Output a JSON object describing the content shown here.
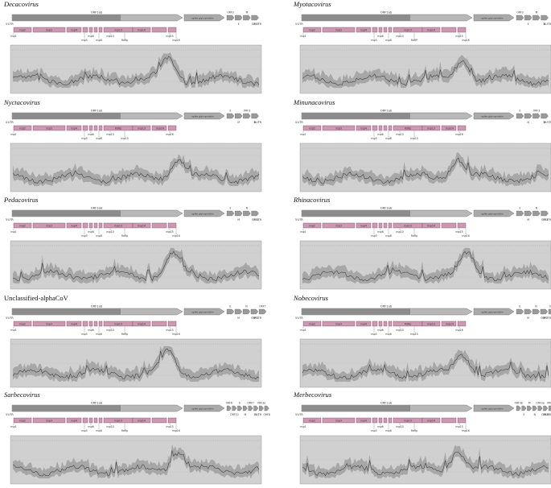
{
  "colors": {
    "orf_dark": "#8c8c8c",
    "orf_light": "#b8b8b8",
    "spike": "#aaaaaa",
    "nsp_fill": "#cc99b3",
    "nsp_stroke": "#7a4a63",
    "plot_bg": "#d0d0d0",
    "line": "#3a3a3a",
    "band": "#9a9a9a"
  },
  "panels": [
    {
      "title": "Decacovirus",
      "italic": true,
      "orf_label": "ORF1ab",
      "spike_label": "spike glycoprotein",
      "utr5": "5'UTR",
      "utr3": "3'UTR",
      "accessory": [
        "ORF3",
        "E",
        "M",
        "ORF7"
      ],
      "nsps_in_bar": [
        "nsp2",
        "nsp3",
        "nsp4",
        "nsp13",
        "nsp14"
      ],
      "nsp_below": [
        "nsp1",
        "nsp5",
        "nsp6",
        "nsp8",
        "nsp10",
        "RdRp",
        "nsp15",
        "nsp16"
      ]
    },
    {
      "title": "Myotacovirus",
      "italic": true,
      "orf_label": "ORF1ab",
      "spike_label": "spike glycoprotein",
      "utr5": "5'UTR",
      "utr3": "3'UTR",
      "accessory": [
        "ORF3",
        "E",
        "M",
        "N"
      ],
      "nsps_in_bar": [
        "nsp2",
        "nsp3",
        "nsp4",
        "nsp13",
        "nsp14"
      ],
      "nsp_below": [
        "nsp1",
        "nsp5",
        "nsp6",
        "nsp8",
        "nsp10",
        "RdRP",
        "nsp15",
        "nsp16"
      ]
    },
    {
      "title": "Nyctacovirus",
      "italic": true,
      "orf_label": "ORF1ab",
      "spike_label": "spike glycoprotein",
      "utr5": "5'UTR",
      "utr3": "3'UTR",
      "accessory": [
        "E",
        "M",
        "ORF3",
        "N"
      ],
      "nsps_in_bar": [
        "nsp2",
        "nsp3",
        "nsp4",
        "RdRp",
        "nsp13",
        "nsp14"
      ],
      "nsp_below": [
        "nsp1",
        "nsp5",
        "nsp6",
        "nsp8",
        "nsp10",
        "nsp15",
        "nsp16"
      ]
    },
    {
      "title": "Minunacovirus",
      "italic": true,
      "orf_label": "ORF1ab",
      "spike_label": "spike glycoprotein",
      "utr5": "5'UTR",
      "utr3": "3'UTR",
      "accessory": [
        "E",
        "N",
        "ORF3",
        "M"
      ],
      "nsps_in_bar": [
        "nsp2",
        "nsp3",
        "nsp4",
        "RdRp",
        "nsp13",
        "nsp14"
      ],
      "nsp_below": [
        "nsp1",
        "nsp5",
        "nsp6",
        "nsp8",
        "nsp10",
        "nsp15",
        "nsp16"
      ]
    },
    {
      "title": "Pedacovirus",
      "italic": true,
      "orf_label": "ORF1ab",
      "spike_label": "spike glycoprotein",
      "utr5": "5'UTR",
      "utr3": "3'UTR",
      "accessory": [
        "E",
        "M",
        "N",
        "ORF3"
      ],
      "nsps_in_bar": [
        "nsp2",
        "nsp3",
        "nsp4",
        "nsp13",
        "nsp14"
      ],
      "nsp_below": [
        "nsp1",
        "nsp5",
        "nsp6",
        "nsp8",
        "nsp10",
        "RdRp",
        "nsp15",
        "nsp16"
      ]
    },
    {
      "title": "Rhinacovirus",
      "italic": true,
      "orf_label": "ORF1ab",
      "spike_label": "spike glycoprotein",
      "utr5": "5'UTR",
      "utr3": "3'UTR",
      "accessory": [
        "E",
        "M",
        "N",
        "ORF3"
      ],
      "nsps_in_bar": [
        "nsp2",
        "nsp3",
        "nsp4",
        "nsp13",
        "nsp14"
      ],
      "nsp_below": [
        "nsp1",
        "nsp5",
        "nsp6",
        "nsp8",
        "nsp10",
        "RdRp",
        "nsp15",
        "nsp16"
      ]
    },
    {
      "title": "Unclassified-alphaCoV",
      "italic": false,
      "orf_label": "ORF1ab",
      "spike_label": "spike glycoprotein",
      "utr5": "5'UTR",
      "utr3": "3'UTR",
      "accessory": [
        "E",
        "M",
        "N",
        "ORF3",
        "ORF7"
      ],
      "nsps_in_bar": [
        "nsp2",
        "nsp3",
        "nsp4",
        "nsp13",
        "nsp14"
      ],
      "nsp_below": [
        "nsp1",
        "nsp5",
        "nsp6",
        "nsp8",
        "nsp10",
        "RdRp",
        "nsp15",
        "nsp16"
      ]
    },
    {
      "title": "Nobecovirus",
      "italic": true,
      "orf_label": "ORF1ab",
      "spike_label": "spike glycoprotein",
      "utr5": "5'UTR",
      "utr3": "3'UTR",
      "accessory": [
        "E",
        "M",
        "N",
        "ORF3",
        "NS7"
      ],
      "nsps_in_bar": [
        "nsp2",
        "nsp3",
        "nsp4",
        "RdRp",
        "nsp13",
        "nsp14"
      ],
      "nsp_below": [
        "nsp1",
        "nsp5",
        "nsp6",
        "nsp8",
        "nsp10",
        "nsp15",
        "nsp16"
      ]
    },
    {
      "title": "Sarbecovirus",
      "italic": true,
      "orf_label": "ORF1ab",
      "spike_label": "spike glycoprotein",
      "utr5": "5'UTR",
      "utr3": "3'UTR",
      "accessory": [
        "ORF6",
        "ORF10",
        "E",
        "M",
        "ORF7",
        "N",
        "ORF3a",
        "ORF8"
      ],
      "nsps_in_bar": [
        "nsp2",
        "nsp3",
        "nsp4",
        "nsp13",
        "nsp14"
      ],
      "nsp_below": [
        "nsp1",
        "nsp5",
        "nsp6",
        "nsp8",
        "nsp10",
        "RdRp",
        "nsp15",
        "nsp16"
      ]
    },
    {
      "title": "Merbecovirus",
      "italic": true,
      "orf_label": "ORF1ab",
      "spike_label": "spike glycoprotein",
      "utr5": "5'UTR",
      "utr3": "3'UTR",
      "accessory": [
        "ORF3b",
        "E",
        "M",
        "N",
        "ORF3a",
        "ORF3c",
        "ORF3d",
        "ORF4b"
      ],
      "nsps_in_bar": [
        "nsp2",
        "nsp3",
        "nsp4",
        "nsp13",
        "nsp14"
      ],
      "nsp_below": [
        "nsp1",
        "nsp5",
        "nsp6",
        "nsp8",
        "nsp10",
        "RdRp",
        "nsp15",
        "nsp16"
      ]
    }
  ]
}
